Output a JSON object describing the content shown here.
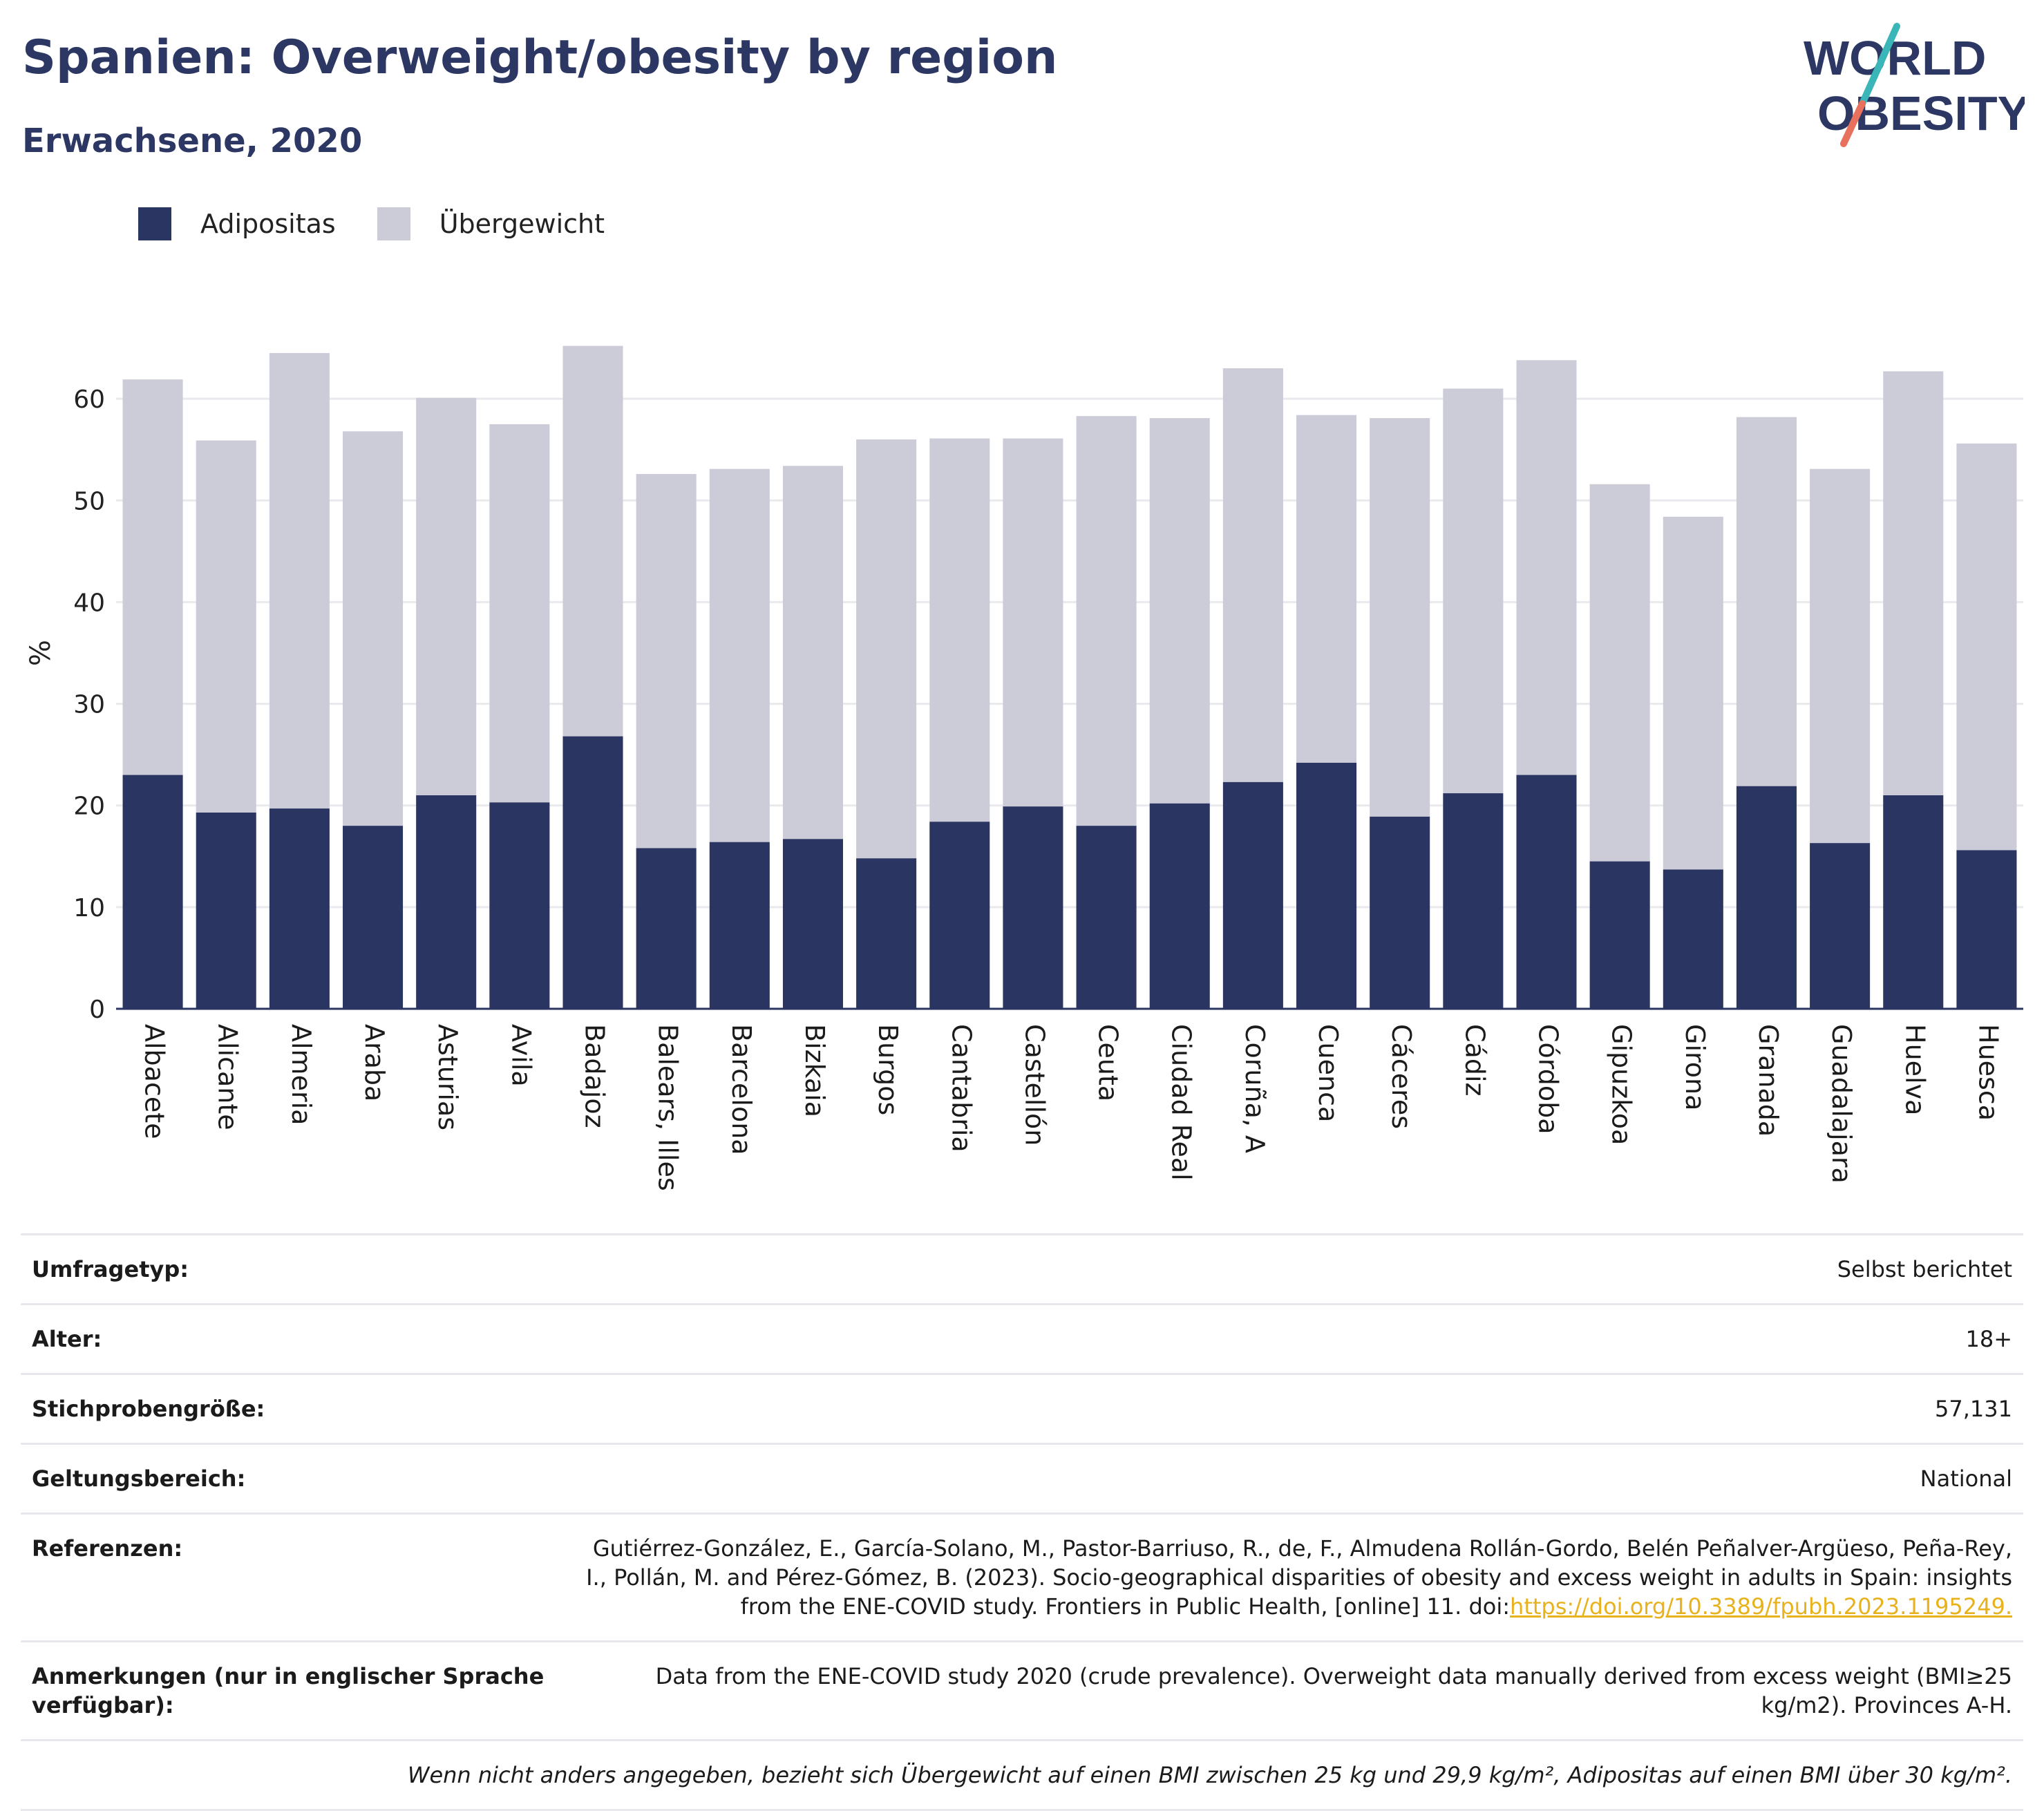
{
  "header": {
    "title": "Spanien: Overweight/obesity by region",
    "subtitle": "Erwachsene, 2020"
  },
  "logo": {
    "line1": "WORLD",
    "line2": "OBESITY"
  },
  "colors": {
    "obesity": "#2b3562",
    "overweight": "#cbccd8",
    "brand": "#2c3764",
    "link": "#e8b21d"
  },
  "legend": {
    "obesity_label": "Adipositas",
    "overweight_label": "Übergewicht"
  },
  "chart_data": {
    "type": "bar",
    "stacked": true,
    "ylabel": "%",
    "ylim": [
      0,
      70
    ],
    "yticks": [
      0,
      10,
      20,
      30,
      40,
      50,
      60
    ],
    "grid": true,
    "legend_position": "top-left",
    "categories": [
      "Albacete",
      "Alicante",
      "Almeria",
      "Araba",
      "Asturias",
      "Avila",
      "Badajoz",
      "Balears, Illes",
      "Barcelona",
      "Bizkaia",
      "Burgos",
      "Cantabria",
      "Castellón",
      "Ceuta",
      "Ciudad Real",
      "Coruña, A",
      "Cuenca",
      "Cáceres",
      "Cádiz",
      "Córdoba",
      "Gipuzkoa",
      "Girona",
      "Granada",
      "Guadalajara",
      "Huelva",
      "Huesca"
    ],
    "series": [
      {
        "name": "Adipositas",
        "values": [
          23.0,
          19.3,
          19.7,
          18.0,
          21.0,
          20.3,
          26.8,
          15.8,
          16.4,
          16.7,
          14.8,
          18.4,
          19.9,
          18.0,
          20.2,
          22.3,
          24.2,
          18.9,
          21.2,
          23.0,
          14.5,
          13.7,
          21.9,
          16.3,
          21.0,
          15.6
        ]
      },
      {
        "name": "Übergewicht",
        "values": [
          38.9,
          36.6,
          44.8,
          38.8,
          39.1,
          37.2,
          38.4,
          36.8,
          36.7,
          36.7,
          41.2,
          37.7,
          36.2,
          40.3,
          37.9,
          40.7,
          34.2,
          39.2,
          39.8,
          40.8,
          37.1,
          34.7,
          36.3,
          36.8,
          41.7,
          40.0
        ]
      }
    ]
  },
  "info": {
    "survey_type": {
      "label": "Umfragetyp:",
      "value": "Selbst berichtet"
    },
    "age": {
      "label": "Alter:",
      "value": "18+"
    },
    "sample_size": {
      "label": "Stichprobengröße:",
      "value": "57,131"
    },
    "scope": {
      "label": "Geltungsbereich:",
      "value": "National"
    },
    "references": {
      "label": "Referenzen:",
      "text": "Gutiérrez-González, E., García-Solano, M., Pastor-Barriuso, R., de, F., Almudena Rollán-Gordo, Belén Peñalver-Argüeso, Peña-Rey, I., Pollán, M. and Pérez-Gómez, B. (2023). Socio-geographical disparities of obesity and excess weight in adults in Spain: insights from the ENE-COVID study. Frontiers in Public Health, [online] 11. doi:",
      "link": "https://doi.org/10.3389/fpubh.2023.1195249."
    },
    "notes": {
      "label": "Anmerkungen (nur in englischer Sprache verfügbar):",
      "value": "Data from the ENE-COVID study 2020 (crude prevalence). Overweight data manually derived from excess weight (BMI≥25 kg/m2). Provinces A-H."
    },
    "footnote": "Wenn nicht anders angegeben, bezieht sich Übergewicht auf einen BMI zwischen 25 kg und 29,9 kg/m², Adipositas auf einen BMI über 30 kg/m²."
  }
}
